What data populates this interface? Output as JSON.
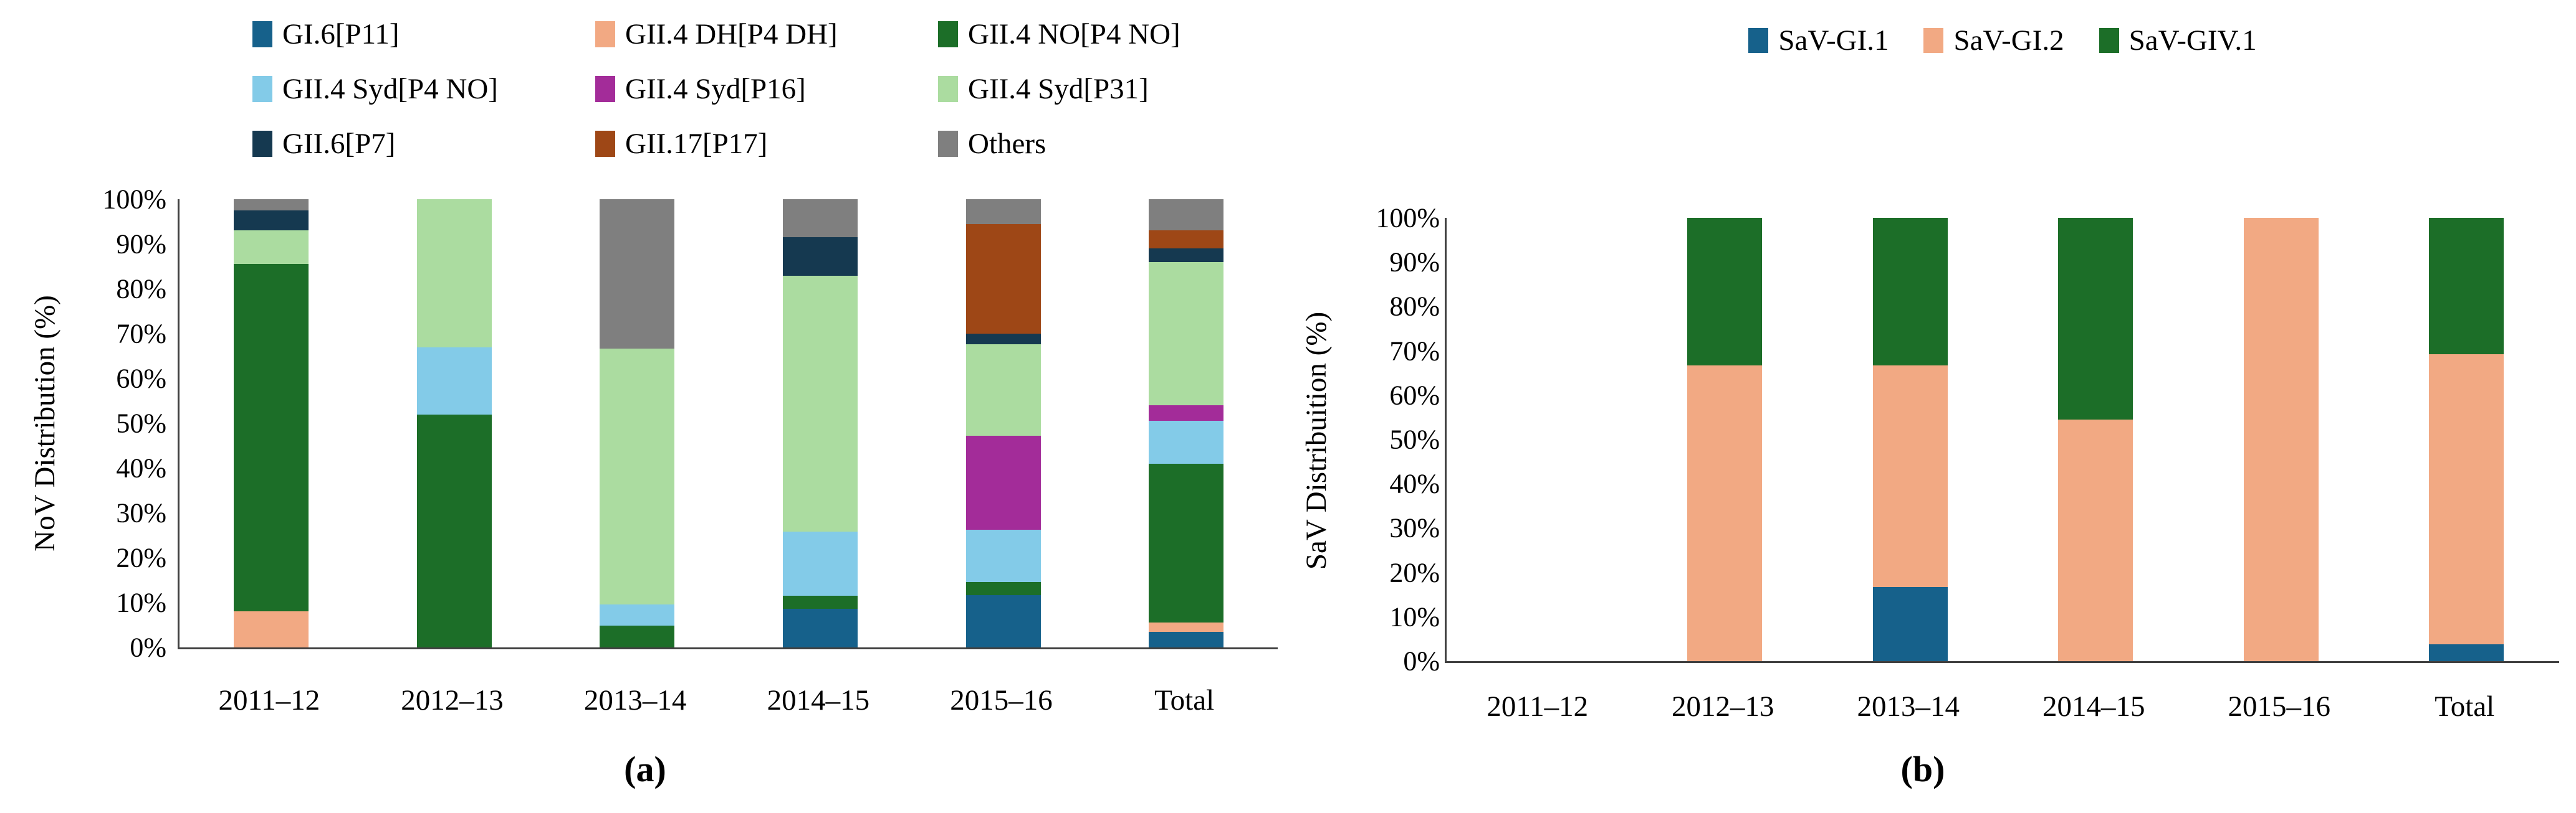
{
  "chart_data": [
    {
      "type": "bar",
      "stacked": true,
      "orientation": "vertical",
      "caption": "(a)",
      "ylabel": "NoV Distribution (%)",
      "ylim": [
        0,
        100
      ],
      "grid": false,
      "legend_position": "top",
      "yticks": [
        "100%",
        "90%",
        "80%",
        "70%",
        "60%",
        "50%",
        "40%",
        "30%",
        "20%",
        "10%",
        "0%"
      ],
      "categories": [
        "2011–12",
        "2012–13",
        "2013–14",
        "2014–15",
        "2015–16",
        "Total"
      ],
      "series": [
        {
          "name": "GI.6[P11]",
          "color": "#16618B",
          "values": [
            0,
            0,
            0,
            8.6,
            11.6,
            3.5
          ]
        },
        {
          "name": "GII.4 DH[P4 DH]",
          "color": "#F2A983",
          "values": [
            8,
            0,
            0,
            0,
            0,
            2
          ]
        },
        {
          "name": "GII.4 NO[P4 NO]",
          "color": "#1C6E28",
          "values": [
            77.5,
            52,
            4.8,
            2.9,
            3,
            35.5
          ]
        },
        {
          "name": "GII.4 Syd[P4 NO]",
          "color": "#83CBE8",
          "values": [
            0,
            15,
            4.8,
            14.3,
            11.6,
            9.5
          ]
        },
        {
          "name": "GII.4 Syd[P16]",
          "color": "#A32C99",
          "values": [
            0,
            0,
            0,
            0,
            21,
            3.5
          ]
        },
        {
          "name": "GII.4 Syd[P31]",
          "color": "#ABDCA0",
          "values": [
            7.5,
            33,
            57.1,
            57.1,
            20.4,
            32
          ]
        },
        {
          "name": "GII.6[P7]",
          "color": "#153950",
          "values": [
            4.5,
            0,
            0,
            8.6,
            2.4,
            3
          ]
        },
        {
          "name": "GII.17[P17]",
          "color": "#9E4716",
          "values": [
            0,
            0,
            0,
            0,
            24.4,
            4
          ]
        },
        {
          "name": "Others",
          "color": "#7F7F7F",
          "values": [
            2.5,
            0,
            33.3,
            8.5,
            5.6,
            7
          ]
        }
      ]
    },
    {
      "type": "bar",
      "stacked": true,
      "orientation": "vertical",
      "caption": "(b)",
      "ylabel": "SaV Distribuition (%)",
      "ylim": [
        0,
        100
      ],
      "grid": false,
      "legend_position": "top",
      "yticks": [
        "100%",
        "90%",
        "80%",
        "70%",
        "60%",
        "50%",
        "40%",
        "30%",
        "20%",
        "10%",
        "0%"
      ],
      "categories": [
        "2011–12",
        "2012–13",
        "2013–14",
        "2014–15",
        "2015–16",
        "Total"
      ],
      "series": [
        {
          "name": "SaV-GI.1",
          "color": "#16618B",
          "values": [
            0,
            0,
            16.7,
            0,
            0,
            3.8
          ]
        },
        {
          "name": "SaV-GI.2",
          "color": "#F2A983",
          "values": [
            0,
            66.7,
            50,
            54.5,
            100,
            65.4
          ]
        },
        {
          "name": "SaV-GIV.1",
          "color": "#1C6E28",
          "values": [
            0,
            33.3,
            33.3,
            45.5,
            0,
            30.8
          ]
        }
      ]
    }
  ]
}
